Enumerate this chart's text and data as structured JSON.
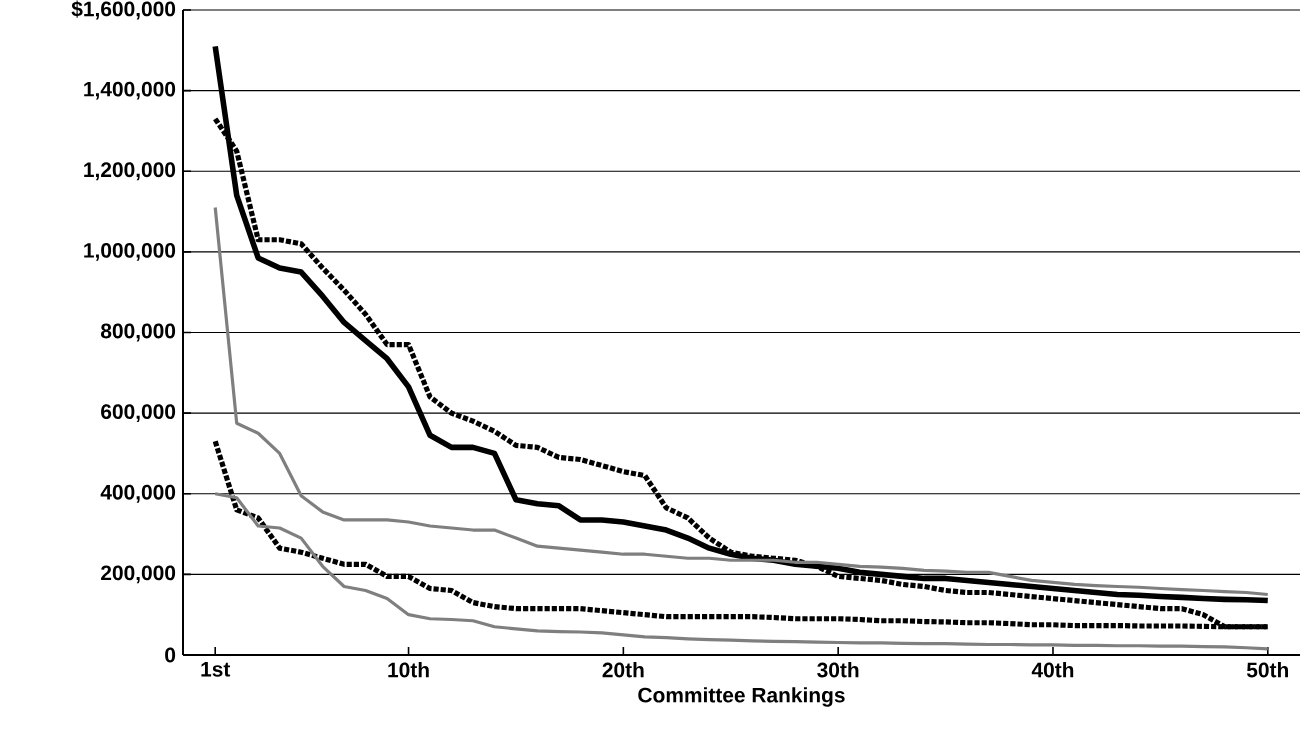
{
  "chart_data": {
    "type": "line",
    "xlabel": "Committee Rankings",
    "x": [
      1,
      2,
      3,
      4,
      5,
      6,
      7,
      8,
      9,
      10,
      11,
      12,
      13,
      14,
      15,
      16,
      17,
      18,
      19,
      20,
      21,
      22,
      23,
      24,
      25,
      26,
      27,
      28,
      29,
      30,
      31,
      32,
      33,
      34,
      35,
      36,
      37,
      38,
      39,
      40,
      41,
      42,
      43,
      44,
      45,
      46,
      47,
      48,
      49,
      50
    ],
    "xlim": [
      -0.5,
      51.5
    ],
    "xticks": [
      {
        "value": 1,
        "label": "1st"
      },
      {
        "value": 10,
        "label": "10th"
      },
      {
        "value": 20,
        "label": "20th"
      },
      {
        "value": 30,
        "label": "30th"
      },
      {
        "value": 40,
        "label": "40th"
      },
      {
        "value": 50,
        "label": "50th"
      }
    ],
    "ylim": [
      0,
      1600000
    ],
    "yticks": [
      0,
      {
        "value": 200000,
        "label": "200,000"
      },
      {
        "value": 400000,
        "label": "400,000"
      },
      {
        "value": 600000,
        "label": "600,000"
      },
      {
        "value": 800000,
        "label": "800,000"
      },
      {
        "value": 1000000,
        "label": "1,000,000"
      },
      {
        "value": 1200000,
        "label": "1,200,000"
      },
      {
        "value": 1400000,
        "label": "1,400,000"
      },
      {
        "value": 1600000,
        "label": "$1,600,000"
      }
    ],
    "grid": "y",
    "series": [
      {
        "color": "#000000",
        "line_style": "solid",
        "values": [
          1510000,
          1140000,
          985000,
          960000,
          950000,
          890000,
          825000,
          780000,
          735000,
          665000,
          545000,
          515000,
          515000,
          500000,
          385000,
          375000,
          370000,
          335000,
          335000,
          330000,
          320000,
          310000,
          290000,
          265000,
          250000,
          240000,
          235000,
          225000,
          220000,
          215000,
          205000,
          200000,
          195000,
          190000,
          190000,
          185000,
          180000,
          175000,
          170000,
          165000,
          160000,
          155000,
          150000,
          148000,
          145000,
          143000,
          140000,
          138000,
          137000,
          135000
        ]
      },
      {
        "color": "#000000",
        "line_style": "dotted",
        "values": [
          1330000,
          1250000,
          1030000,
          1030000,
          1020000,
          960000,
          905000,
          845000,
          770000,
          770000,
          640000,
          600000,
          580000,
          555000,
          520000,
          515000,
          490000,
          485000,
          470000,
          455000,
          445000,
          365000,
          340000,
          290000,
          255000,
          245000,
          240000,
          235000,
          220000,
          195000,
          190000,
          185000,
          175000,
          170000,
          160000,
          155000,
          155000,
          150000,
          145000,
          140000,
          135000,
          130000,
          125000,
          120000,
          115000,
          115000,
          100000,
          70000,
          70000,
          70000
        ]
      },
      {
        "color": "#7f7f7f",
        "line_style": "solid",
        "values": [
          1110000,
          575000,
          550000,
          500000,
          395000,
          355000,
          335000,
          335000,
          335000,
          330000,
          320000,
          315000,
          310000,
          310000,
          290000,
          270000,
          265000,
          260000,
          255000,
          250000,
          250000,
          245000,
          240000,
          240000,
          235000,
          235000,
          235000,
          230000,
          230000,
          225000,
          220000,
          218000,
          215000,
          210000,
          208000,
          205000,
          205000,
          195000,
          185000,
          180000,
          175000,
          172000,
          170000,
          168000,
          165000,
          162000,
          160000,
          157000,
          155000,
          150000
        ]
      },
      {
        "color": "#000000",
        "line_style": "dotted",
        "values": [
          530000,
          360000,
          340000,
          265000,
          255000,
          240000,
          225000,
          225000,
          195000,
          195000,
          165000,
          160000,
          130000,
          120000,
          115000,
          115000,
          115000,
          115000,
          110000,
          105000,
          100000,
          95000,
          95000,
          95000,
          95000,
          95000,
          93000,
          90000,
          90000,
          90000,
          88000,
          85000,
          85000,
          83000,
          82000,
          80000,
          80000,
          78000,
          75000,
          75000,
          73000,
          73000,
          73000,
          72000,
          72000,
          72000,
          71000,
          70000,
          70000,
          70000
        ]
      },
      {
        "color": "#7f7f7f",
        "line_style": "solid",
        "values": [
          400000,
          390000,
          320000,
          315000,
          290000,
          220000,
          170000,
          160000,
          140000,
          100000,
          90000,
          88000,
          85000,
          70000,
          65000,
          60000,
          58000,
          57000,
          55000,
          50000,
          45000,
          43000,
          40000,
          38000,
          37000,
          35000,
          34000,
          33000,
          32000,
          31000,
          30000,
          30000,
          29000,
          28000,
          28000,
          27000,
          26000,
          26000,
          25000,
          25000,
          24000,
          24000,
          23000,
          23000,
          22000,
          22000,
          21000,
          20000,
          18000,
          15000
        ]
      }
    ]
  }
}
